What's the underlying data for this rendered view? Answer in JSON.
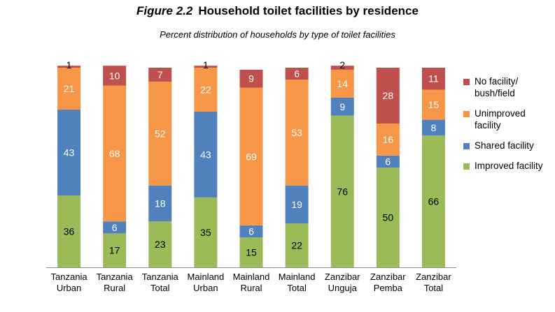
{
  "header": {
    "figure_label": "Figure 2.2",
    "title": "Household toilet facilities by residence",
    "subtitle": "Percent distribution of households by type of toilet facilities"
  },
  "chart_data": {
    "type": "bar",
    "stacked": true,
    "categories": [
      [
        "Tanzania",
        "Urban"
      ],
      [
        "Tanzania",
        "Rural"
      ],
      [
        "Tanzania",
        "Total"
      ],
      [
        "Mainland",
        "Urban"
      ],
      [
        "Mainland",
        "Rural"
      ],
      [
        "Mainland",
        "Total"
      ],
      [
        "Zanzibar",
        "Unguja"
      ],
      [
        "Zanzibar",
        "Pemba"
      ],
      [
        "Zanzibar",
        "Total"
      ]
    ],
    "series": [
      {
        "name": "Improved facility",
        "color": "#9bbb59",
        "values": [
          36,
          17,
          23,
          35,
          15,
          22,
          76,
          50,
          66
        ]
      },
      {
        "name": "Shared facility",
        "color": "#4f81bd",
        "values": [
          43,
          6,
          18,
          43,
          6,
          19,
          9,
          6,
          8
        ]
      },
      {
        "name": "Unimproved facility",
        "color": "#f79646",
        "values": [
          21,
          68,
          52,
          22,
          69,
          53,
          14,
          16,
          15
        ]
      },
      {
        "name": "No facility/ bush/field",
        "color": "#c0504d",
        "values": [
          1,
          10,
          7,
          1,
          9,
          6,
          2,
          28,
          11
        ]
      }
    ],
    "ylim": [
      0,
      100
    ],
    "grid": false,
    "legend_position": "right"
  },
  "legend": {
    "items": [
      {
        "label": "No facility/ bush/field",
        "color": "#c0504d"
      },
      {
        "label": "Unimproved facility",
        "color": "#f79646"
      },
      {
        "label": "Shared facility",
        "color": "#4f81bd"
      },
      {
        "label": "Improved facility",
        "color": "#9bbb59"
      }
    ]
  }
}
